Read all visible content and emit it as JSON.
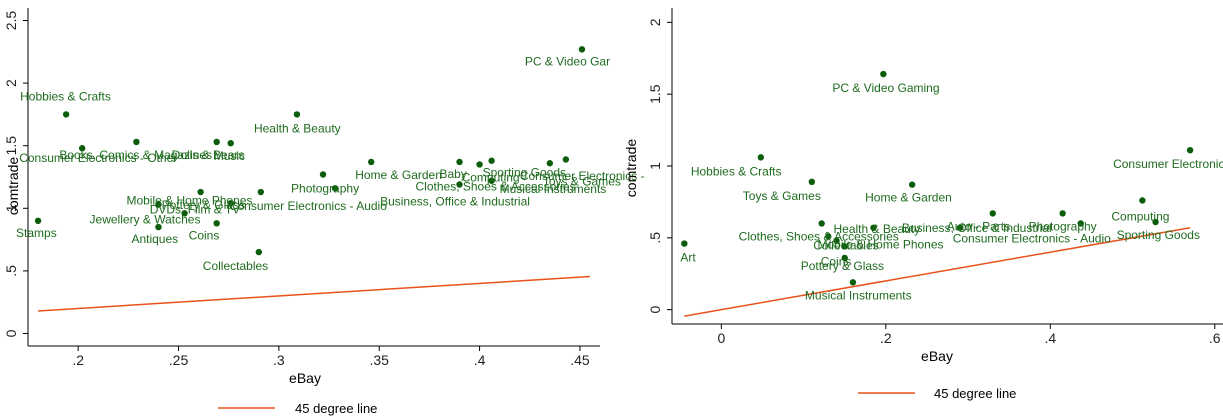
{
  "colors": {
    "points": "#0b5d0b",
    "labels": "#1f6b1f",
    "line": "#e8521a",
    "axis": "#000000"
  },
  "chart_data": [
    {
      "type": "scatter",
      "xlabel": "eBay",
      "ylabel": "comtrade",
      "xlim": [
        0.175,
        0.46
      ],
      "ylim": [
        -0.1,
        2.6
      ],
      "xticks": [
        0.2,
        0.25,
        0.3,
        0.35,
        0.4,
        0.45
      ],
      "xtick_labels": [
        ".2",
        ".25",
        ".3",
        ".35",
        ".4",
        ".45"
      ],
      "yticks": [
        0,
        0.5,
        1,
        1.5,
        2,
        2.5
      ],
      "ytick_labels": [
        "0",
        ".5",
        "1",
        "1.5",
        "2",
        "2.5"
      ],
      "legend": {
        "label": "45 degree line",
        "position": "bottom-center"
      },
      "line": {
        "x": [
          0.18,
          0.455
        ],
        "y": [
          0.18,
          0.455
        ]
      },
      "points": [
        {
          "label": "Stamps",
          "x": 0.18,
          "y": 0.9
        },
        {
          "label": "Hobbies & Crafts",
          "x": 0.194,
          "y": 1.75
        },
        {
          "label": "Consumer Electronics - Other",
          "x": 0.202,
          "y": 1.48
        },
        {
          "label": "Books, Comics & Magazines",
          "x": 0.229,
          "y": 1.53
        },
        {
          "label": "Antiques",
          "x": 0.24,
          "y": 0.85
        },
        {
          "label": "Mobile & Home Phones",
          "x": 0.24,
          "y": 1.03
        },
        {
          "label": "Jewellery & Watches",
          "x": 0.253,
          "y": 0.96
        },
        {
          "label": "Pottery & Glass",
          "x": 0.261,
          "y": 1.13
        },
        {
          "label": "Coins",
          "x": 0.269,
          "y": 0.88
        },
        {
          "label": "Dolls & Bears",
          "x": 0.269,
          "y": 1.53
        },
        {
          "label": "DVDs, Film & TV",
          "x": 0.276,
          "y": 1.04
        },
        {
          "label": "Music",
          "x": 0.276,
          "y": 1.52
        },
        {
          "label": "Collectables",
          "x": 0.29,
          "y": 0.65
        },
        {
          "label": "Consumer Electronics - Audio",
          "x": 0.291,
          "y": 1.13
        },
        {
          "label": "Health & Beauty",
          "x": 0.309,
          "y": 1.75
        },
        {
          "label": "Photography",
          "x": 0.322,
          "y": 1.27
        },
        {
          "label": "Business, Office & Industrial",
          "x": 0.328,
          "y": 1.16
        },
        {
          "label": "Home & Garden",
          "x": 0.346,
          "y": 1.37
        },
        {
          "label": "Clothes, Shoes & Accessories",
          "x": 0.39,
          "y": 1.19
        },
        {
          "label": "Baby",
          "x": 0.39,
          "y": 1.37
        },
        {
          "label": "Computing",
          "x": 0.4,
          "y": 1.35
        },
        {
          "label": "Musical Instruments",
          "x": 0.406,
          "y": 1.22
        },
        {
          "label": "Sporting Goods",
          "x": 0.406,
          "y": 1.38
        },
        {
          "label": "Consumer Electronics -",
          "x": 0.435,
          "y": 1.36
        },
        {
          "label": "Toys & Games",
          "x": 0.443,
          "y": 1.39
        },
        {
          "label": "PC & Video Gar",
          "x": 0.451,
          "y": 2.27
        }
      ]
    },
    {
      "type": "scatter",
      "xlabel": "eBay",
      "ylabel": "comtrade",
      "xlim": [
        -0.06,
        0.61
      ],
      "ylim": [
        -0.1,
        2.1
      ],
      "xticks": [
        0,
        0.2,
        0.4,
        0.6
      ],
      "xtick_labels": [
        "0",
        ".2",
        ".4",
        ".6"
      ],
      "yticks": [
        0,
        0.5,
        1,
        1.5,
        2
      ],
      "ytick_labels": [
        "0",
        ".5",
        "1",
        "1.5",
        "2"
      ],
      "legend": {
        "label": "45 degree line",
        "position": "bottom-center"
      },
      "line": {
        "x": [
          -0.045,
          0.57
        ],
        "y": [
          -0.045,
          0.57
        ]
      },
      "points": [
        {
          "label": "Art",
          "x": -0.045,
          "y": 0.46
        },
        {
          "label": "Hobbies & Crafts",
          "x": 0.048,
          "y": 1.06
        },
        {
          "label": "Toys & Games",
          "x": 0.11,
          "y": 0.89
        },
        {
          "label": "Clothes, Shoes & Accessories",
          "x": 0.122,
          "y": 0.6
        },
        {
          "label": "Collectables",
          "x": 0.13,
          "y": 0.51
        },
        {
          "label": "Mobile & Home Phones",
          "x": 0.14,
          "y": 0.48
        },
        {
          "label": "Pottery & Glass",
          "x": 0.15,
          "y": 0.36
        },
        {
          "label": "Coins",
          "x": 0.15,
          "y": 0.44
        },
        {
          "label": "Musical Instruments",
          "x": 0.16,
          "y": 0.19
        },
        {
          "label": "Health & Beauty",
          "x": 0.185,
          "y": 0.57
        },
        {
          "label": "PC & Video Gaming",
          "x": 0.197,
          "y": 1.64
        },
        {
          "label": "Home & Garden",
          "x": 0.232,
          "y": 0.87
        },
        {
          "label": "Business, Office & Industrial",
          "x": 0.29,
          "y": 0.57
        },
        {
          "label": "Auto - Parts",
          "x": 0.33,
          "y": 0.67
        },
        {
          "label": "Photography",
          "x": 0.415,
          "y": 0.67
        },
        {
          "label": "Consumer Electronics - Audio",
          "x": 0.437,
          "y": 0.6
        },
        {
          "label": "Computing",
          "x": 0.512,
          "y": 0.76
        },
        {
          "label": "Sporting Goods",
          "x": 0.528,
          "y": 0.61
        },
        {
          "label": "Consumer Electronics - V",
          "x": 0.57,
          "y": 1.11
        }
      ]
    }
  ]
}
